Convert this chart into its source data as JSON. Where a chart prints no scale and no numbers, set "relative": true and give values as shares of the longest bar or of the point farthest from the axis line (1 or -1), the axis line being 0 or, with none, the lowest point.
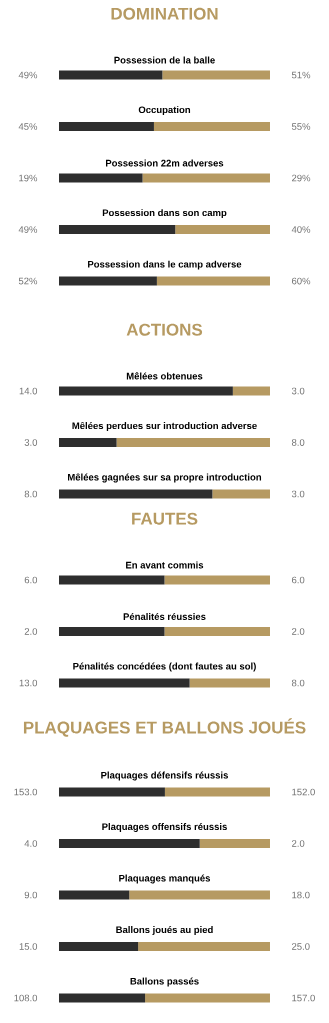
{
  "chart_data": [
    {
      "type": "bar",
      "orientation": "horizontal",
      "stacked": true,
      "relative": true,
      "title": "DOMINATION",
      "categories": [
        "Possession de la balle",
        "Occupation",
        "Possession 22m adverses",
        "Possession dans son camp",
        "Possession dans le camp adverse"
      ],
      "series": [
        {
          "color": "#2e2e2e",
          "values": [
            0.49,
            0.45,
            0.396,
            0.551,
            0.464
          ]
        },
        {
          "color": "#b69a62",
          "values": [
            0.51,
            0.55,
            0.604,
            0.449,
            0.536
          ]
        }
      ],
      "annotations": [
        "49%",
        "51%",
        "45%",
        "55%",
        "19%",
        "29%",
        "49%",
        "40%",
        "52%",
        "60%"
      ]
    },
    {
      "type": "bar",
      "orientation": "horizontal",
      "stacked": true,
      "relative": true,
      "title": "ACTIONS",
      "categories": [
        "Mêlées obtenues",
        "Mêlées perdues sur introduction adverse",
        "Mêlées gagnées sur sa propre introduction"
      ],
      "series": [
        {
          "color": "#2e2e2e",
          "values": [
            0.824,
            0.273,
            0.727
          ]
        },
        {
          "color": "#b69a62",
          "values": [
            0.176,
            0.727,
            0.273
          ]
        }
      ],
      "annotations": [
        "14.0",
        "3.0",
        "3.0",
        "8.0",
        "8.0",
        "3.0"
      ]
    },
    {
      "type": "bar",
      "orientation": "horizontal",
      "stacked": true,
      "relative": true,
      "title": "FAUTES",
      "categories": [
        "En avant commis",
        "Pénalités réussies",
        "Pénalités concédées (dont fautes au sol)"
      ],
      "series": [
        {
          "color": "#2e2e2e",
          "values": [
            0.5,
            0.5,
            0.619
          ]
        },
        {
          "color": "#b69a62",
          "values": [
            0.5,
            0.5,
            0.381
          ]
        }
      ],
      "annotations": [
        "6.0",
        "6.0",
        "2.0",
        "2.0",
        "13.0",
        "8.0"
      ]
    },
    {
      "type": "bar",
      "orientation": "horizontal",
      "stacked": true,
      "relative": true,
      "title": "PLAQUAGES ET BALLONS JOUÉS",
      "categories": [
        "Plaquages défensifs réussis",
        "Plaquages offensifs réussis",
        "Plaquages manqués",
        "Ballons joués au pied",
        "Ballons passés"
      ],
      "series": [
        {
          "color": "#2e2e2e",
          "values": [
            0.502,
            0.667,
            0.333,
            0.375,
            0.408
          ]
        },
        {
          "color": "#b69a62",
          "values": [
            0.498,
            0.333,
            0.667,
            0.625,
            0.592
          ]
        }
      ],
      "annotations": [
        "153.0",
        "152.0",
        "4.0",
        "2.0",
        "9.0",
        "18.0",
        "15.0",
        "25.0",
        "108.0",
        "157.0"
      ]
    }
  ]
}
